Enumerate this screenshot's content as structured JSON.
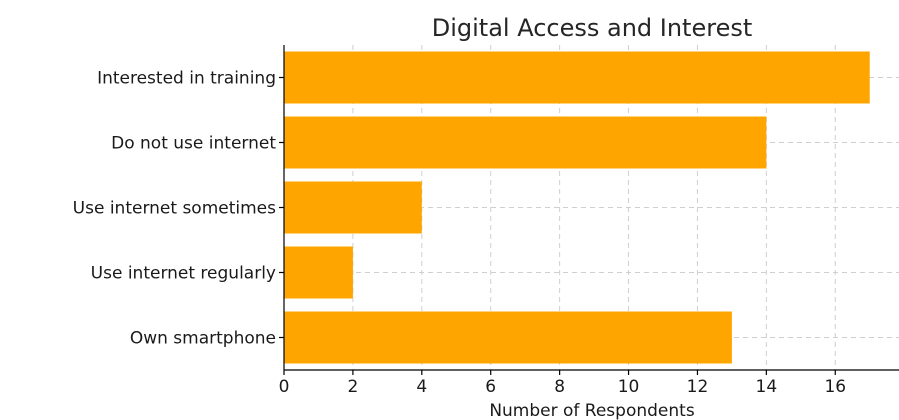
{
  "chart_data": {
    "type": "bar",
    "orientation": "horizontal",
    "title": "Digital Access and Interest",
    "xlabel": "Number of Respondents",
    "ylabel": "",
    "categories": [
      "Own smartphone",
      "Use internet regularly",
      "Use internet sometimes",
      "Do not use internet",
      "Interested in training"
    ],
    "values": [
      13,
      2,
      4,
      14,
      17
    ],
    "xlim": [
      0,
      17.85
    ],
    "xticks": [
      0,
      2,
      4,
      6,
      8,
      10,
      12,
      14,
      16
    ],
    "grid": true,
    "bar_color": "#ffa500"
  }
}
